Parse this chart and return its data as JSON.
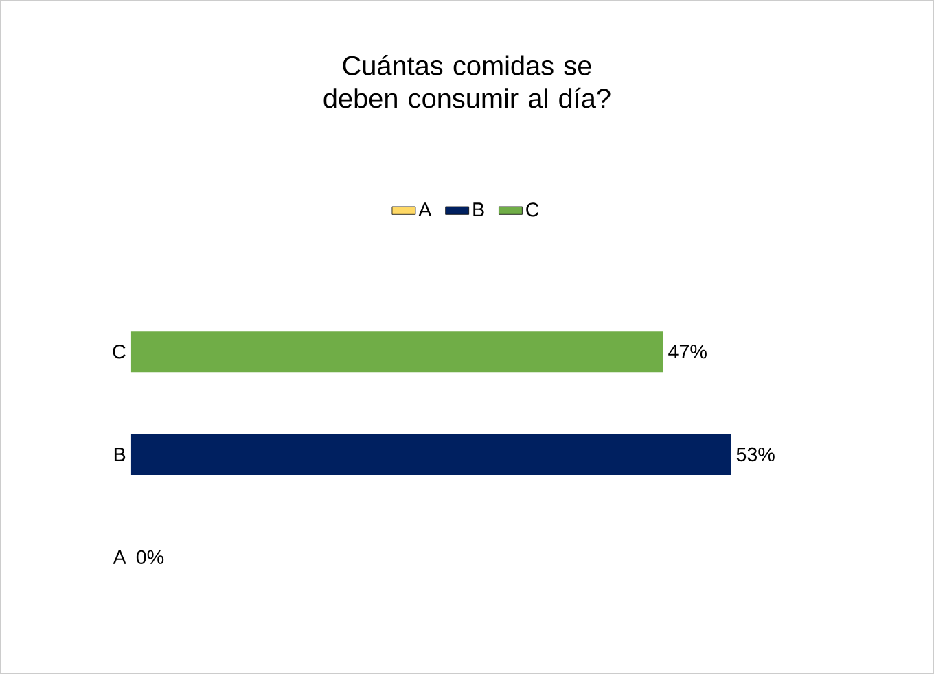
{
  "chart_data": {
    "type": "bar",
    "orientation": "horizontal",
    "stacked": true,
    "title": "Cuántas comidas se deben consumir al día?",
    "categories": [
      "C",
      "B",
      "A"
    ],
    "series": [
      {
        "name": "A",
        "color": "#ffd966",
        "values": [
          null,
          null,
          0
        ],
        "value_labels": [
          null,
          null,
          "0%"
        ]
      },
      {
        "name": "B",
        "color": "#002060",
        "values": [
          null,
          53,
          null
        ],
        "value_labels": [
          null,
          "53%",
          null
        ]
      },
      {
        "name": "C",
        "color": "#70ad47",
        "values": [
          47,
          null,
          null
        ],
        "value_labels": [
          "47%",
          null,
          null
        ]
      }
    ],
    "legend": "top"
  }
}
